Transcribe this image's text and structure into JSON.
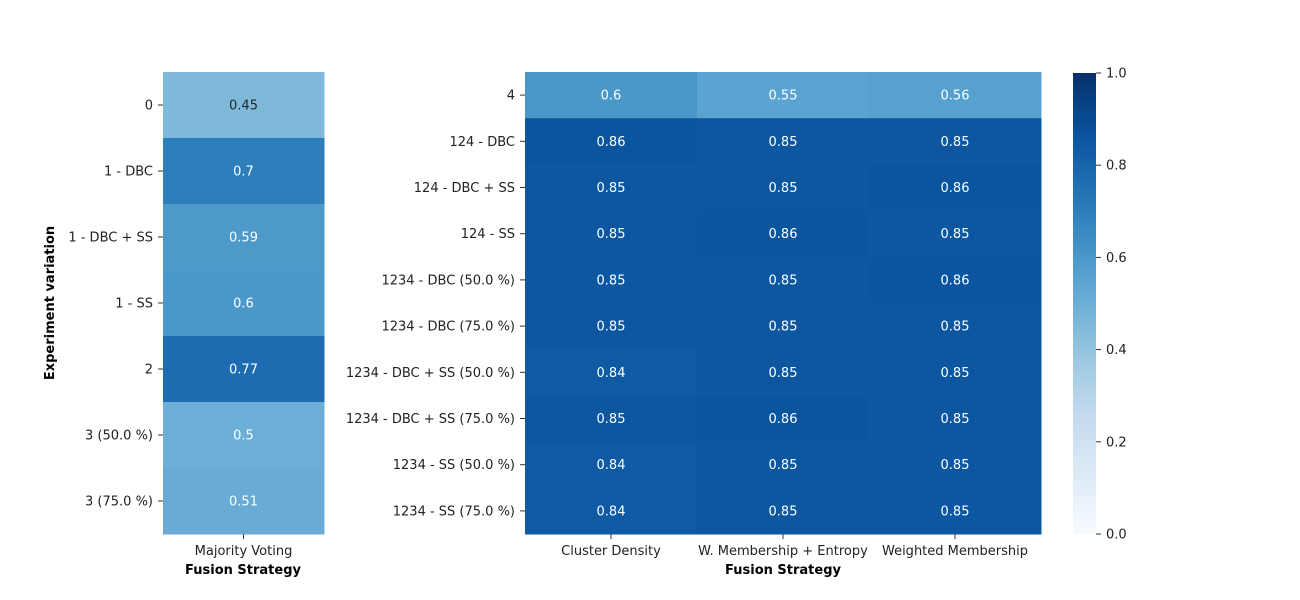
{
  "chart_data": [
    {
      "type": "heatmap",
      "ylabel": "Experiment variation",
      "xlabel": "Fusion Strategy",
      "columns": [
        "Majority Voting"
      ],
      "rows": [
        "0",
        "1 - DBC",
        "1 - DBC + SS",
        "1 - SS",
        "2",
        "3 (50.0 %)",
        "3 (75.0 %)"
      ],
      "values": [
        [
          0.45
        ],
        [
          0.7
        ],
        [
          0.59
        ],
        [
          0.6
        ],
        [
          0.77
        ],
        [
          0.5
        ],
        [
          0.51
        ]
      ],
      "vmin": 0,
      "vmax": 1,
      "colormap": "Blues"
    },
    {
      "type": "heatmap",
      "xlabel": "Fusion Strategy",
      "columns": [
        "Cluster Density",
        "W. Membership + Entropy",
        "Weighted Membership"
      ],
      "rows": [
        "4",
        "124 - DBC",
        "124 - DBC + SS",
        "124 - SS",
        "1234 - DBC (50.0 %)",
        "1234 - DBC (75.0 %)",
        "1234 - DBC + SS (50.0 %)",
        "1234 - DBC + SS (75.0 %)",
        "1234 - SS (50.0 %)",
        "1234 - SS (75.0 %)"
      ],
      "values": [
        [
          0.6,
          0.55,
          0.56
        ],
        [
          0.86,
          0.85,
          0.85
        ],
        [
          0.85,
          0.85,
          0.86
        ],
        [
          0.85,
          0.86,
          0.85
        ],
        [
          0.85,
          0.85,
          0.86
        ],
        [
          0.85,
          0.85,
          0.85
        ],
        [
          0.84,
          0.85,
          0.85
        ],
        [
          0.85,
          0.86,
          0.85
        ],
        [
          0.84,
          0.85,
          0.85
        ],
        [
          0.84,
          0.85,
          0.85
        ]
      ],
      "vmin": 0,
      "vmax": 1,
      "colormap": "Blues"
    }
  ],
  "colorbar": {
    "ticks": [
      "0.0",
      "0.2",
      "0.4",
      "0.6",
      "0.8",
      "1.0"
    ],
    "range": [
      0,
      1
    ]
  }
}
